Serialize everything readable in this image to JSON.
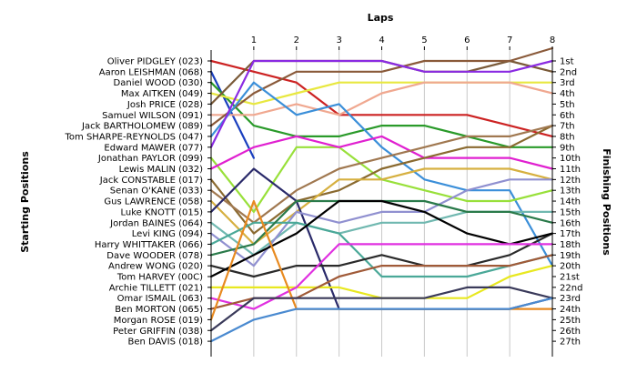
{
  "chart_data": {
    "type": "line",
    "title": "",
    "xlabel": "Laps",
    "ylabel_left": "Starting Positions",
    "ylabel_right": "Finishing Positions",
    "x": [
      0,
      1,
      2,
      3,
      4,
      5,
      6,
      7,
      8
    ],
    "x_tick_labels": [
      "1",
      "2",
      "3",
      "4",
      "5",
      "6",
      "7",
      "8"
    ],
    "y_reversed": true,
    "ylim": [
      1,
      27
    ],
    "grid": "vertical",
    "start_labels": [
      "Oliver PIDGLEY (023)",
      "Aaron LEISHMAN (068)",
      "Daniel WOOD (030)",
      "Max AITKEN (049)",
      "Josh PRICE (028)",
      "Samuel WILSON (091)",
      "Jack BARTHOLOMEW (089)",
      "Tom SHARPE-REYNOLDS (047)",
      "Edward MAWER (077)",
      "Jonathan PAYLOR (099)",
      "Lewis MALIN (032)",
      "Jack CONSTABLE (017)",
      "Senan O'KANE (033)",
      "Gus LAWRENCE (058)",
      "Luke KNOTT (015)",
      "Jordan BAINES (064)",
      "Levi KING (094)",
      "Harry WHITTAKER (066)",
      "Dave WOODER (078)",
      "Andrew WONG (020)",
      "Tom HARVEY (00C)",
      "Archie TILLETT (021)",
      "Omar ISMAIL (063)",
      "Ben MORTON (065)",
      "Morgan ROSE (019)",
      "Peter GRIFFIN (038)",
      "Ben DAVIS (018)"
    ],
    "finish_labels": [
      "1st",
      "2nd",
      "3rd",
      "4th",
      "5th",
      "6th",
      "7th",
      "8th",
      "9th",
      "10th",
      "11th",
      "12th",
      "13th",
      "14th",
      "15th",
      "16th",
      "17th",
      "18th",
      "19th",
      "20th",
      "21st",
      "22nd",
      "23rd",
      "24th",
      "25th",
      "26th",
      "27th"
    ],
    "series": [
      {
        "start": 1,
        "positions": [
          1,
          2,
          3,
          6,
          6,
          6,
          6,
          7,
          8
        ],
        "color": "#cc2222"
      },
      {
        "start": 2,
        "positions": [
          2,
          10
        ],
        "color": "#1a3fbf"
      },
      {
        "start": 3,
        "positions": [
          3,
          7,
          8,
          8,
          7,
          7,
          8,
          9,
          9
        ],
        "color": "#2a9a2a"
      },
      {
        "start": 4,
        "positions": [
          4,
          5,
          4,
          3,
          3,
          3,
          3,
          3,
          3
        ],
        "color": "#e8e840"
      },
      {
        "start": 5,
        "positions": [
          5,
          1,
          1,
          1,
          1,
          2,
          2,
          1,
          2
        ],
        "color": "#7a5a38"
      },
      {
        "start": 6,
        "positions": [
          6,
          6,
          5,
          6,
          4,
          3,
          3,
          3,
          4
        ],
        "color": "#f0a890"
      },
      {
        "start": 7,
        "positions": [
          7,
          4,
          2,
          2,
          2,
          1,
          1,
          1,
          0
        ],
        "color": "#8a5a3a"
      },
      {
        "start": 8,
        "positions": [
          8,
          3,
          6,
          5,
          9,
          12,
          13,
          13,
          20
        ],
        "color": "#3b8fd9"
      },
      {
        "start": 9,
        "positions": [
          9,
          1,
          1,
          1,
          1,
          2,
          2,
          2,
          1
        ],
        "color": "#8a2be2"
      },
      {
        "start": 10,
        "positions": [
          10,
          15,
          9,
          9,
          12,
          13,
          14,
          14,
          13
        ],
        "color": "#98e03a"
      },
      {
        "start": 11,
        "positions": [
          11,
          9,
          8,
          9,
          8,
          10,
          10,
          10,
          11
        ],
        "color": "#e020d0"
      },
      {
        "start": 12,
        "positions": [
          12,
          17,
          14,
          13,
          11,
          10,
          9,
          9,
          7
        ],
        "color": "#8a6a30"
      },
      {
        "start": 13,
        "positions": [
          13,
          16,
          13,
          11,
          10,
          9,
          8,
          8,
          7
        ],
        "color": "#a07850"
      },
      {
        "start": 14,
        "positions": [
          14,
          18,
          15,
          12,
          12,
          11,
          11,
          11,
          12
        ],
        "color": "#d6b040"
      },
      {
        "start": 15,
        "positions": [
          15,
          11,
          14,
          24,
          24,
          24,
          24,
          24,
          23
        ],
        "color": "#2a2a6a"
      },
      {
        "start": 16,
        "positions": [
          16,
          19,
          16,
          17,
          16,
          16,
          15,
          15,
          15
        ],
        "color": "#70b8b0"
      },
      {
        "start": 17,
        "positions": [
          17,
          20,
          15,
          16,
          15,
          15,
          13,
          12,
          12
        ],
        "color": "#9090d0"
      },
      {
        "start": 18,
        "positions": [
          18,
          16,
          16,
          17,
          21,
          21,
          21,
          20,
          19
        ],
        "color": "#4aa898"
      },
      {
        "start": 19,
        "positions": [
          19,
          18,
          14,
          14,
          14,
          14,
          15,
          15,
          16
        ],
        "color": "#2a7a4a"
      },
      {
        "start": 20,
        "positions": [
          20,
          21,
          20,
          20,
          19,
          20,
          20,
          19,
          17
        ],
        "color": "#2a2a2a"
      },
      {
        "start": 21,
        "positions": [
          21,
          19,
          17,
          14,
          14,
          15,
          17,
          18,
          17
        ],
        "color": "#000000"
      },
      {
        "start": 22,
        "positions": [
          22,
          22,
          22,
          22,
          23,
          23,
          23,
          21,
          20
        ],
        "color": "#e8e820"
      },
      {
        "start": 23,
        "positions": [
          23,
          24,
          22,
          18,
          18,
          18,
          18,
          18,
          18
        ],
        "color": "#e030e0"
      },
      {
        "start": 24,
        "positions": [
          24,
          23,
          23,
          21,
          20,
          20,
          20,
          20,
          19
        ],
        "color": "#a05a38"
      },
      {
        "start": 25,
        "positions": [
          25,
          14,
          24,
          24,
          24,
          24,
          24,
          24,
          24
        ],
        "color": "#e88a20"
      },
      {
        "start": 26,
        "positions": [
          26,
          23,
          23,
          23,
          23,
          23,
          22,
          22,
          23
        ],
        "color": "#3a3a5a"
      },
      {
        "start": 27,
        "positions": [
          27,
          25,
          24,
          24,
          24,
          24,
          24,
          24,
          23
        ],
        "color": "#4a8ad0"
      }
    ]
  }
}
